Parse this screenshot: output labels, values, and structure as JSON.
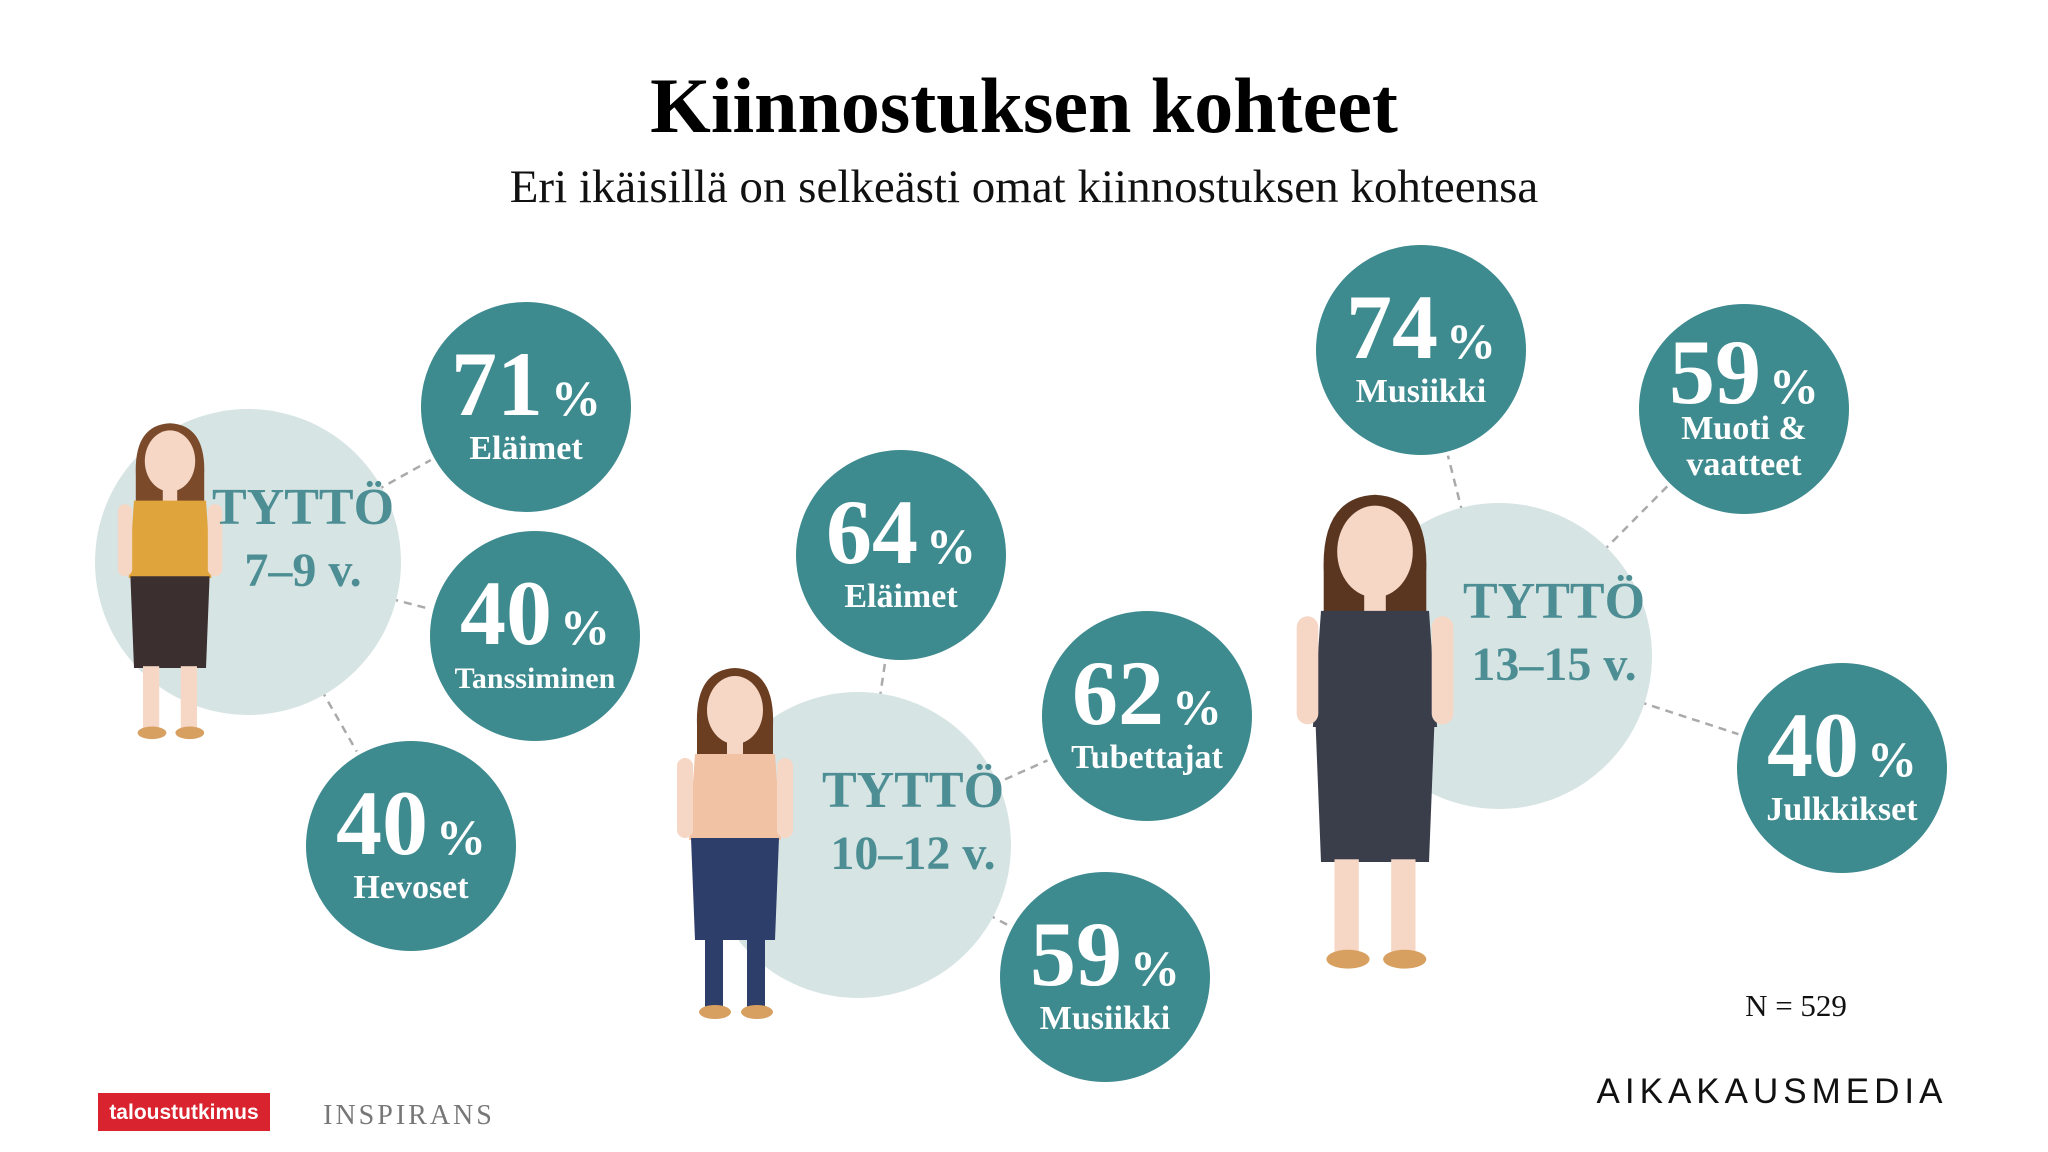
{
  "header": {
    "title": "Kiinnostuksen kohteet",
    "subtitle": "Eri ikäisillä on selkeästi omat kiinnostuksen kohteensa"
  },
  "percent_sign": "%",
  "groups": [
    {
      "label": "TYTTÖ",
      "age": "7–9 v.",
      "items": [
        {
          "value": 71,
          "label": [
            "Eläimet"
          ]
        },
        {
          "value": 40,
          "label": [
            "Tanssiminen"
          ]
        },
        {
          "value": 40,
          "label": [
            "Hevoset"
          ]
        }
      ]
    },
    {
      "label": "TYTTÖ",
      "age": "10–12 v.",
      "items": [
        {
          "value": 64,
          "label": [
            "Eläimet"
          ]
        },
        {
          "value": 62,
          "label": [
            "Tubettajat"
          ]
        },
        {
          "value": 59,
          "label": [
            "Musiikki"
          ]
        }
      ]
    },
    {
      "label": "TYTTÖ",
      "age": "13–15 v.",
      "items": [
        {
          "value": 74,
          "label": [
            "Musiikki"
          ]
        },
        {
          "value": 59,
          "label": [
            "Muoti &",
            "vaatteet"
          ]
        },
        {
          "value": 40,
          "label": [
            "Julkkikset"
          ]
        }
      ]
    }
  ],
  "footer": {
    "sample": "N = 529",
    "logo_left": "taloustutkimus",
    "logo_middle": "INSPIRANS",
    "logo_right": "AIKAKAUSMEDIA"
  }
}
